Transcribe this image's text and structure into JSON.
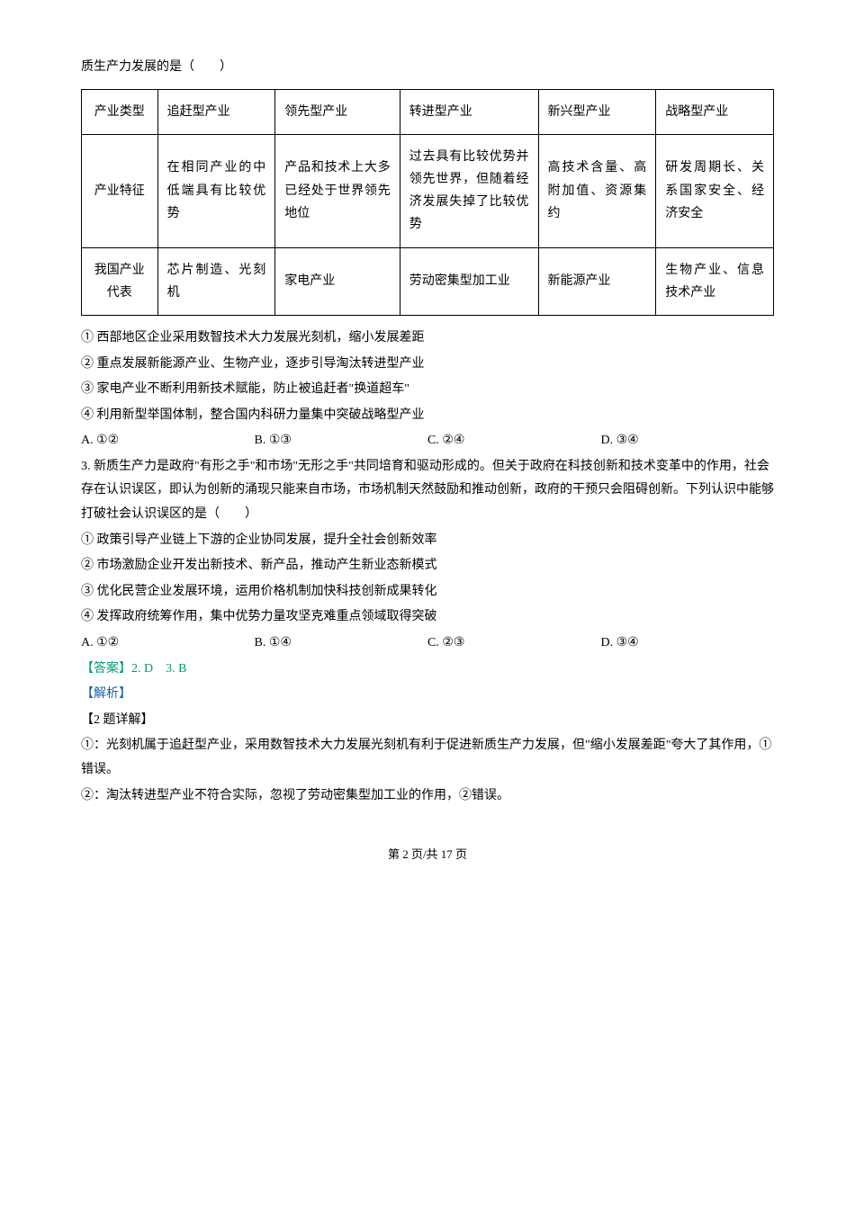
{
  "lead": "质生产力发展的是（　　）",
  "table": {
    "columns": [
      "产业类型",
      "追赶型产业",
      "领先型产业",
      "转进型产业",
      "新兴型产业",
      "战略型产业"
    ],
    "rows": [
      [
        "产业特征",
        "在相同产业的中低端具有比较优势",
        "产品和技术上大多已经处于世界领先地位",
        "过去具有比较优势并领先世界，但随着经济发展失掉了比较优势",
        "高技术含量、高附加值、资源集约",
        "研发周期长、关系国家安全、经济安全"
      ],
      [
        "我国产业代表",
        "芯片制造、光刻机",
        "家电产业",
        "劳动密集型加工业",
        "新能源产业",
        "生物产业、信息技术产业"
      ]
    ],
    "col_widths": [
      "11%",
      "17%",
      "18%",
      "20%",
      "17%",
      "17%"
    ]
  },
  "stmts2": [
    "① 西部地区企业采用数智技术大力发展光刻机，缩小发展差距",
    "② 重点发展新能源产业、生物产业，逐步引导淘汰转进型产业",
    "③ 家电产业不断利用新技术赋能，防止被追赶者\"换道超车\"",
    "④ 利用新型举国体制，整合国内科研力量集中突破战略型产业"
  ],
  "opts2": {
    "A": "A. ①②",
    "B": "B. ①③",
    "C": "C. ②④",
    "D": "D. ③④"
  },
  "q3": "3. 新质生产力是政府\"有形之手\"和市场\"无形之手\"共同培育和驱动形成的。但关于政府在科技创新和技术变革中的作用，社会存在认识误区，即认为创新的涌现只能来自市场，市场机制天然鼓励和推动创新，政府的干预只会阻碍创新。下列认识中能够打破社会认识误区的是（　　）",
  "stmts3": [
    "① 政策引导产业链上下游的企业协同发展，提升全社会创新效率",
    "② 市场激励企业开发出新技术、新产品，推动产生新业态新模式",
    "③ 优化民营企业发展环境，运用价格机制加快科技创新成果转化",
    "④ 发挥政府统筹作用，集中优势力量攻坚克难重点领域取得突破"
  ],
  "opts3": {
    "A": "A. ①②",
    "B": "B. ①④",
    "C": "C. ②③",
    "D": "D. ③④"
  },
  "answer": "【答案】2. D　3. B",
  "analysisLabel": "【解析】",
  "detailLabel": "【2 题详解】",
  "detail1": "①：光刻机属于追赶型产业，采用数智技术大力发展光刻机有利于促进新质生产力发展，但\"缩小发展差距\"夸大了其作用，①错误。",
  "detail2": "②：淘汰转进型产业不符合实际，忽视了劳动密集型加工业的作用，②错误。",
  "footer": "第 2 页/共 17 页"
}
